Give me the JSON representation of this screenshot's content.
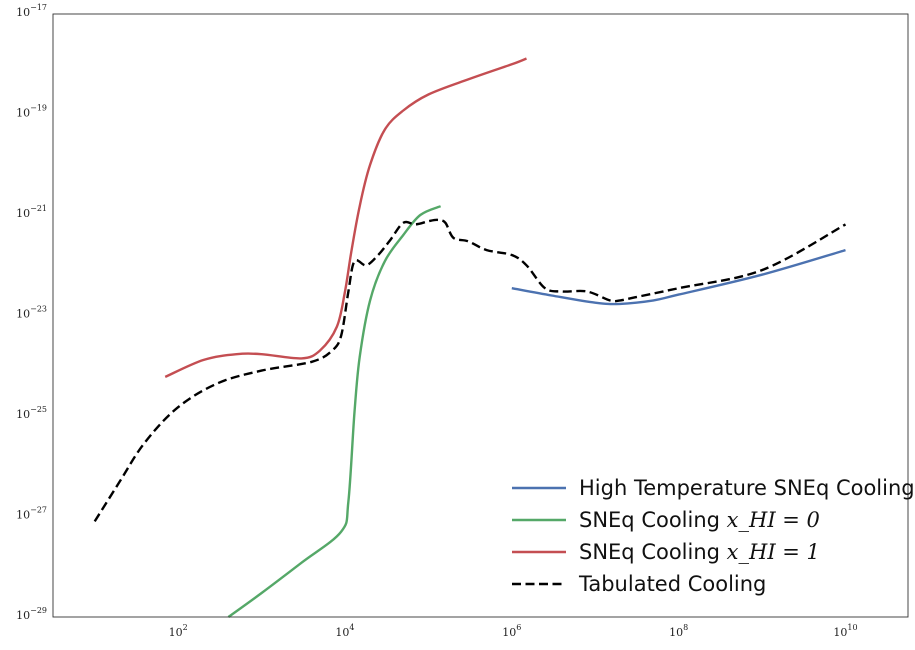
{
  "chart_data": {
    "type": "line",
    "xscale": "log",
    "yscale": "log",
    "xlim": [
      3.16,
      56200000000.0
    ],
    "ylim": [
      1e-29,
      1e-17
    ],
    "grid": false,
    "legend_placement": "lower-right",
    "x_ticks": [
      {
        "value": 100,
        "base": "10",
        "exp": "2"
      },
      {
        "value": 10000,
        "base": "10",
        "exp": "4"
      },
      {
        "value": 1000000,
        "base": "10",
        "exp": "6"
      },
      {
        "value": 100000000,
        "base": "10",
        "exp": "8"
      },
      {
        "value": 10000000000,
        "base": "10",
        "exp": "10"
      }
    ],
    "y_ticks": [
      {
        "value": 1e-29,
        "base": "10",
        "exp": "−29"
      },
      {
        "value": 1e-27,
        "base": "10",
        "exp": "−27"
      },
      {
        "value": 1e-25,
        "base": "10",
        "exp": "−25"
      },
      {
        "value": 1e-23,
        "base": "10",
        "exp": "−23"
      },
      {
        "value": 1e-21,
        "base": "10",
        "exp": "−21"
      },
      {
        "value": 1e-19,
        "base": "10",
        "exp": "−19"
      },
      {
        "value": 1e-17,
        "base": "10",
        "exp": "−17"
      }
    ],
    "series": [
      {
        "name": "High Temperature SNEq Cooling",
        "name_plain": "High Temperature SNEq Cooling",
        "name_math": "",
        "color": "#4c72b0",
        "dash": "solid",
        "x": [
          1000000,
          3000000,
          10000000,
          20000000,
          50000000,
          100000000,
          1000000000,
          10000000000
        ],
        "y": [
          3.5e-23,
          2.5e-23,
          1.8e-23,
          1.7e-23,
          2e-23,
          2.6e-23,
          6.5e-23,
          2e-22
        ]
      },
      {
        "name": "SNEq Cooling x_HI = 0",
        "name_plain": "SNEq Cooling ",
        "name_math": "x_HI = 0",
        "color": "#55a868",
        "dash": "solid",
        "x": [
          400,
          1000,
          3000,
          9000,
          11000,
          13000,
          15000,
          20000,
          30000,
          50000,
          80000,
          140000
        ],
        "y": [
          1e-29,
          3e-29,
          1.2e-28,
          5e-28,
          2e-27,
          1.2e-25,
          1.5e-24,
          2e-23,
          1.2e-22,
          4e-22,
          1e-21,
          1.5e-21
        ]
      },
      {
        "name": "SNEq Cooling x_HI = 1",
        "name_plain": "SNEq Cooling ",
        "name_math": "x_HI = 1",
        "color": "#c44e52",
        "dash": "solid",
        "x": [
          70,
          200,
          500,
          1000,
          3000,
          5000,
          8000,
          10000,
          12000,
          15000,
          20000,
          30000,
          50000,
          100000,
          300000,
          1000000,
          1500000
        ],
        "y": [
          6e-25,
          1.3e-24,
          1.7e-24,
          1.7e-24,
          1.4e-24,
          2e-24,
          6e-24,
          3e-23,
          2e-22,
          1.5e-21,
          1e-20,
          5e-20,
          1.2e-19,
          2.5e-19,
          5e-19,
          1e-18,
          1.3e-18
        ]
      },
      {
        "name": "Tabulated Cooling",
        "name_plain": "Tabulated Cooling",
        "name_math": "",
        "color": "#000000",
        "dash": "dashed",
        "x": [
          10,
          20,
          40,
          100,
          300,
          1000,
          4000,
          7000,
          9000,
          11000,
          13000,
          18000,
          25000,
          35000,
          50000,
          70000,
          100000,
          130000,
          160000,
          200000,
          300000,
          500000,
          1000000,
          1500000,
          2500000,
          4000000,
          8000000,
          15000000,
          20000000,
          30000000,
          100000000,
          1000000000,
          10000000000
        ],
        "y": [
          8e-28,
          5e-27,
          3e-26,
          1.5e-25,
          4.5e-25,
          8e-25,
          1.2e-24,
          2e-24,
          4e-24,
          3e-23,
          1.2e-22,
          1e-22,
          1.6e-22,
          3.2e-22,
          7e-22,
          6.5e-22,
          7.5e-22,
          8e-22,
          7e-22,
          3.5e-22,
          3e-22,
          2e-22,
          1.6e-22,
          1e-22,
          3.5e-23,
          3e-23,
          3e-23,
          2e-23,
          2e-23,
          2.3e-23,
          3.5e-23,
          8e-23,
          6.5e-22
        ]
      }
    ]
  }
}
